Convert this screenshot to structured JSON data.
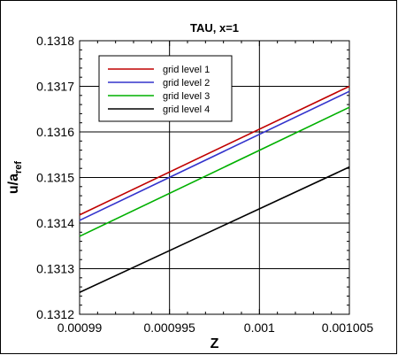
{
  "chart_data": {
    "type": "line",
    "title": "TAU, x=1",
    "xlabel": "Z",
    "ylabel": "u/a",
    "ylabel_sub": "ref",
    "xlim": [
      0.00099,
      0.001005
    ],
    "ylim": [
      0.1312,
      0.1318
    ],
    "x_ticks": [
      0.00099,
      0.000995,
      0.001,
      0.001005
    ],
    "x_tick_labels": [
      "0.00099",
      "0.000995",
      "0.001",
      "0.001005"
    ],
    "y_ticks": [
      0.1312,
      0.1313,
      0.1314,
      0.1315,
      0.1316,
      0.1317,
      0.1318
    ],
    "y_tick_labels": [
      "0.1312",
      "0.1313",
      "0.1314",
      "0.1315",
      "0.1316",
      "0.1317",
      "0.1318"
    ],
    "grid": true,
    "legend_position": "top-left",
    "series": [
      {
        "name": "grid level 1",
        "color": "#c00000",
        "x": [
          0.00099,
          0.001005
        ],
        "values": [
          0.131418,
          0.1317
        ]
      },
      {
        "name": "grid level 2",
        "color": "#3333cc",
        "x": [
          0.00099,
          0.001005
        ],
        "values": [
          0.131406,
          0.131689
        ]
      },
      {
        "name": "grid level 3",
        "color": "#00b000",
        "x": [
          0.00099,
          0.001005
        ],
        "values": [
          0.131371,
          0.131654
        ]
      },
      {
        "name": "grid level 4",
        "color": "#000000",
        "x": [
          0.00099,
          0.001005
        ],
        "values": [
          0.131248,
          0.131523
        ]
      }
    ]
  }
}
